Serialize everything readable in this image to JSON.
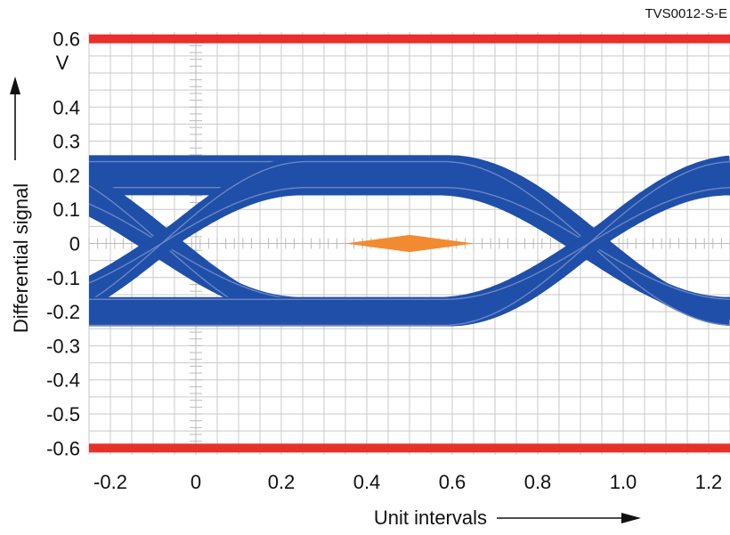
{
  "figure_code": "TVS0012-S-E",
  "chart_data": {
    "type": "line",
    "title": "",
    "xlabel": "Unit intervals",
    "ylabel": "Differential signal",
    "yunit": "V",
    "xlim": [
      -0.25,
      1.25
    ],
    "ylim": [
      -0.62,
      0.62
    ],
    "x_ticks": [
      "-0.2",
      "0",
      "0.2",
      "0.4",
      "0.6",
      "0.8",
      "1.0",
      "1.2"
    ],
    "x_tick_values": [
      -0.2,
      0,
      0.2,
      0.4,
      0.6,
      0.8,
      1.0,
      1.2
    ],
    "y_ticks": [
      "0.6",
      "0.4",
      "0.3",
      "0.2",
      "0.1",
      "0",
      "-0.1",
      "-0.2",
      "-0.3",
      "-0.4",
      "-0.5",
      "-0.6"
    ],
    "y_tick_values": [
      0.6,
      0.4,
      0.3,
      0.2,
      0.1,
      0,
      -0.1,
      -0.2,
      -0.3,
      -0.4,
      -0.5,
      -0.6
    ],
    "grid": true,
    "series": [
      {
        "kind": "eye-diagram",
        "color": "#1f4fa8",
        "rail_levels": [
          0.2,
          -0.2
        ],
        "crossings_ui": [
          -0.08,
          0.92
        ],
        "crossing_level": 0
      }
    ],
    "limit_lines": [
      {
        "y": 0.6,
        "color": "#e8302a"
      },
      {
        "y": -0.6,
        "color": "#e8302a"
      }
    ],
    "eye_mask": {
      "color": "#f28a30",
      "points": [
        [
          0.35,
          0
        ],
        [
          0.5,
          0.025
        ],
        [
          0.65,
          0
        ],
        [
          0.5,
          -0.025
        ]
      ]
    }
  },
  "colors": {
    "grid": "#c9c9c9",
    "signal": "#1f4fa8",
    "signal_edge": "#6a86c4",
    "limit": "#e8302a",
    "mask": "#f28a30"
  }
}
